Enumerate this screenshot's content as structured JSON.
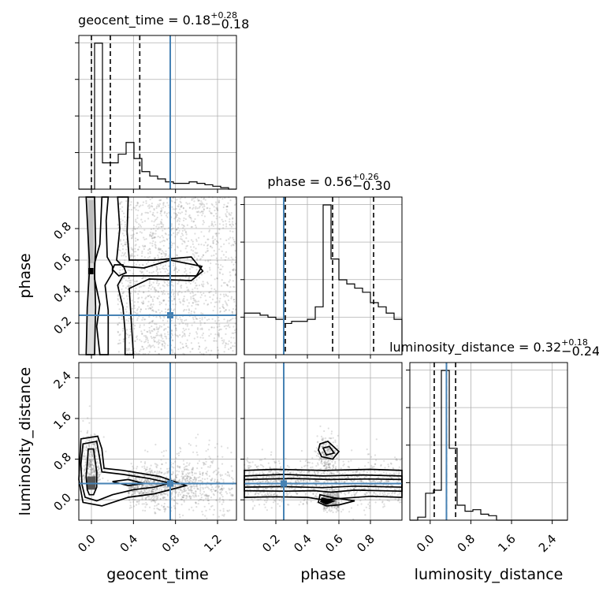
{
  "chart_data": {
    "type": "corner",
    "parameters": [
      {
        "name": "geocent_time",
        "axis_label": "geocent_time",
        "title": "geocent_time = 0.18",
        "title_sup": "+0.28",
        "title_sub": "−0.18",
        "range": [
          -0.12,
          1.38
        ],
        "ticks": [
          0.0,
          0.4,
          0.8,
          1.2
        ],
        "tick_labels": [
          "0.0",
          "0.4",
          "0.8",
          "1.2"
        ],
        "quantiles": [
          0.0,
          0.18,
          0.46
        ],
        "truth": 0.75,
        "hist_edges": [
          -0.12,
          -0.045,
          0.03,
          0.105,
          0.18,
          0.255,
          0.33,
          0.405,
          0.48,
          0.555,
          0.63,
          0.705,
          0.78,
          0.855,
          0.93,
          1.005,
          1.08,
          1.155,
          1.23,
          1.305,
          1.38
        ],
        "hist_counts": [
          0,
          0,
          100,
          18,
          18,
          24,
          32,
          21,
          12,
          9,
          7,
          5,
          4,
          4,
          5,
          4,
          3,
          2,
          1,
          0
        ]
      },
      {
        "name": "phase",
        "axis_label": "phase",
        "title": "phase = 0.56",
        "title_sup": "+0.26",
        "title_sub": "−0.30",
        "range": [
          0.0,
          1.0
        ],
        "ticks": [
          0.2,
          0.4,
          0.6,
          0.8
        ],
        "tick_labels": [
          "0.2",
          "0.4",
          "0.6",
          "0.8"
        ],
        "quantiles": [
          0.26,
          0.56,
          0.82
        ],
        "truth": 0.25,
        "hist_edges": [
          0.0,
          0.05,
          0.1,
          0.15,
          0.2,
          0.25,
          0.3,
          0.35,
          0.4,
          0.45,
          0.5,
          0.55,
          0.6,
          0.65,
          0.7,
          0.75,
          0.8,
          0.85,
          0.9,
          0.95,
          1.0
        ],
        "hist_counts": [
          20,
          20,
          19,
          18,
          17,
          15,
          16,
          16,
          17,
          23,
          72,
          46,
          36,
          34,
          32,
          30,
          25,
          23,
          20,
          17
        ]
      },
      {
        "name": "luminosity_distance",
        "axis_label": "luminosity_distance",
        "title": "luminosity_distance = 0.32",
        "title_sup": "+0.18",
        "title_sub": "−0.24",
        "range": [
          -0.4,
          2.7
        ],
        "ticks": [
          0.0,
          0.8,
          1.6,
          2.4
        ],
        "tick_labels": [
          "0.0",
          "0.8",
          "1.6",
          "2.4"
        ],
        "quantiles": [
          0.08,
          0.32,
          0.5
        ],
        "truth": 0.32,
        "hist_edges": [
          -0.4,
          -0.245,
          -0.09,
          0.065,
          0.22,
          0.375,
          0.53,
          0.685,
          0.84,
          0.995,
          1.15,
          1.305,
          1.46,
          1.615,
          1.77,
          1.925,
          2.08,
          2.235,
          2.39,
          2.545,
          2.7
        ],
        "hist_counts": [
          0,
          2,
          18,
          20,
          100,
          48,
          10,
          6,
          7,
          4,
          3,
          0,
          0,
          0,
          0,
          0,
          0,
          0,
          0,
          0
        ]
      }
    ],
    "grid": true,
    "truth_color": "#4682b4",
    "line_color": "#000000",
    "sample_color": "#7a7a7a"
  }
}
